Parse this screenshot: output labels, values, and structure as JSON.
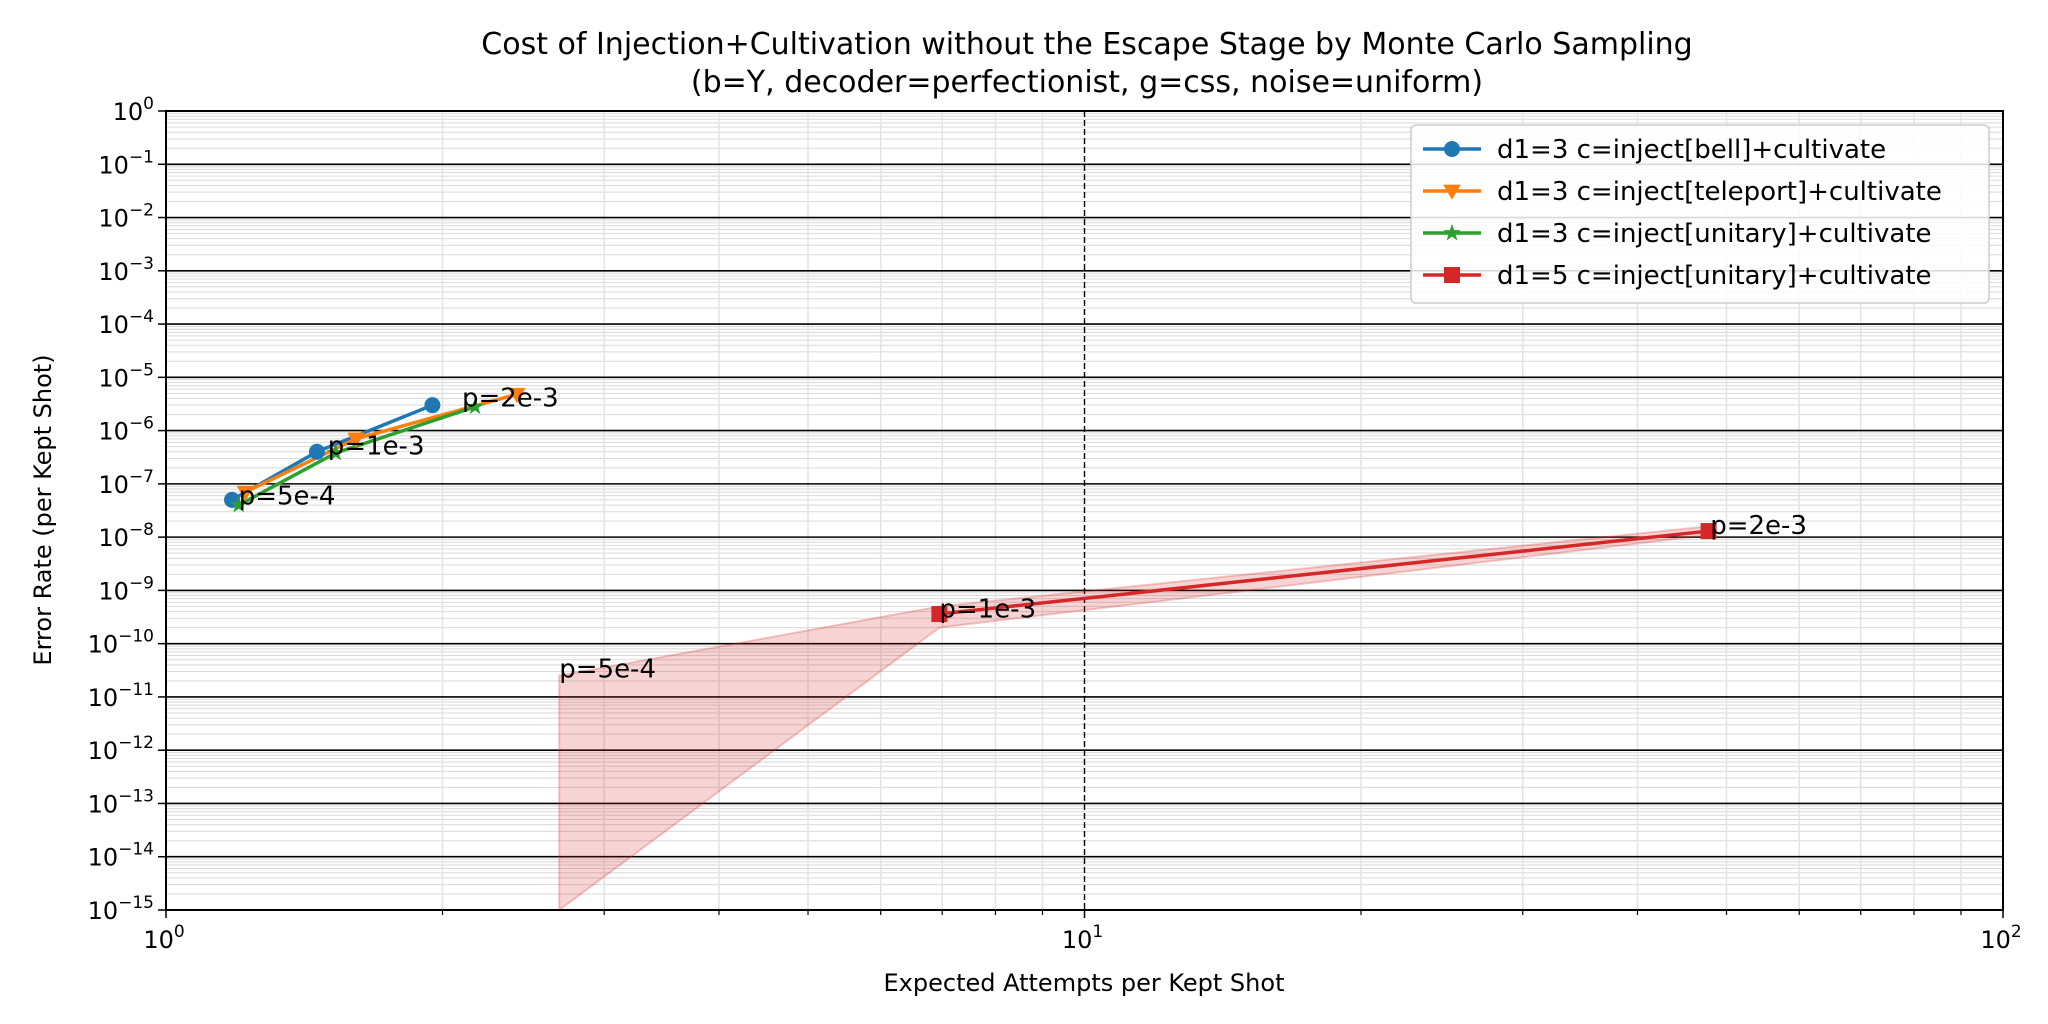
{
  "chart_data": {
    "type": "line",
    "title": "Cost of Injection+Cultivation without the Escape Stage by Monte Carlo Sampling",
    "subtitle": "(b=Y, decoder=perfectionist, g=css, noise=uniform)",
    "xlabel": "Expected Attempts per Kept Shot",
    "ylabel": "Error Rate (per Kept Shot)",
    "x_scale": "log",
    "y_scale": "log",
    "xlim": [
      1,
      100
    ],
    "ylim": [
      1e-15,
      1
    ],
    "x_ticks": [
      {
        "value": 1,
        "base": "10",
        "exp": "0"
      },
      {
        "value": 10,
        "base": "10",
        "exp": "1"
      },
      {
        "value": 100,
        "base": "10",
        "exp": "2"
      }
    ],
    "y_ticks": [
      {
        "value": 1,
        "base": "10",
        "exp": "0"
      },
      {
        "value": 0.1,
        "base": "10",
        "exp": "−1"
      },
      {
        "value": 0.01,
        "base": "10",
        "exp": "−2"
      },
      {
        "value": 0.001,
        "base": "10",
        "exp": "−3"
      },
      {
        "value": 0.0001,
        "base": "10",
        "exp": "−4"
      },
      {
        "value": 1e-05,
        "base": "10",
        "exp": "−5"
      },
      {
        "value": 1e-06,
        "base": "10",
        "exp": "−6"
      },
      {
        "value": 1e-07,
        "base": "10",
        "exp": "−7"
      },
      {
        "value": 1e-08,
        "base": "10",
        "exp": "−8"
      },
      {
        "value": 1e-09,
        "base": "10",
        "exp": "−9"
      },
      {
        "value": 1e-10,
        "base": "10",
        "exp": "−10"
      },
      {
        "value": 1e-11,
        "base": "10",
        "exp": "−11"
      },
      {
        "value": 1e-12,
        "base": "10",
        "exp": "−12"
      },
      {
        "value": 1e-13,
        "base": "10",
        "exp": "−13"
      },
      {
        "value": 1e-14,
        "base": "10",
        "exp": "−14"
      },
      {
        "value": 1e-15,
        "base": "10",
        "exp": "−15"
      }
    ],
    "grid": true,
    "legend_position": "top-right",
    "series": [
      {
        "name": "d1=3 c=inject[bell]+cultivate",
        "color": "#1f77b4",
        "marker": "circle",
        "x": [
          1.18,
          1.46,
          1.95
        ],
        "y": [
          5e-08,
          4e-07,
          3e-06
        ]
      },
      {
        "name": "d1=3 c=inject[teleport]+cultivate",
        "color": "#ff7f0e",
        "marker": "triangle-down",
        "x": [
          1.22,
          1.61,
          2.41
        ],
        "y": [
          7e-08,
          7e-07,
          4.8e-06
        ]
      },
      {
        "name": "d1=3 c=inject[unitary]+cultivate",
        "color": "#2ca02c",
        "marker": "star",
        "x": [
          1.2,
          1.53,
          2.17
        ],
        "y": [
          4e-08,
          3.8e-07,
          2.8e-06
        ]
      },
      {
        "name": "d1=5 c=inject[unitary]+cultivate",
        "color": "#d62728",
        "marker": "square",
        "x": [
          6.95,
          47.8
        ],
        "y": [
          3.6e-10,
          1.3e-08
        ],
        "band": {
          "x": [
            2.68,
            6.95,
            47.8
          ],
          "upper": [
            2.5e-11,
            5e-10,
            1.6e-08
          ],
          "lower": [
            1e-15,
            2e-10,
            1.1e-08
          ]
        }
      }
    ],
    "annotations": [
      {
        "text": "p=2e-3",
        "x": 2.1,
        "y": 4.2e-06
      },
      {
        "text": "p=1e-3",
        "x": 1.5,
        "y": 5.2e-07
      },
      {
        "text": "p=5e-4",
        "x": 1.2,
        "y": 6e-08
      },
      {
        "text": "p=2e-3",
        "x": 48,
        "y": 1.7e-08
      },
      {
        "text": "p=1e-3",
        "x": 6.95,
        "y": 4.6e-10
      },
      {
        "text": "p=5e-4",
        "x": 2.68,
        "y": 3.4e-11
      }
    ]
  }
}
